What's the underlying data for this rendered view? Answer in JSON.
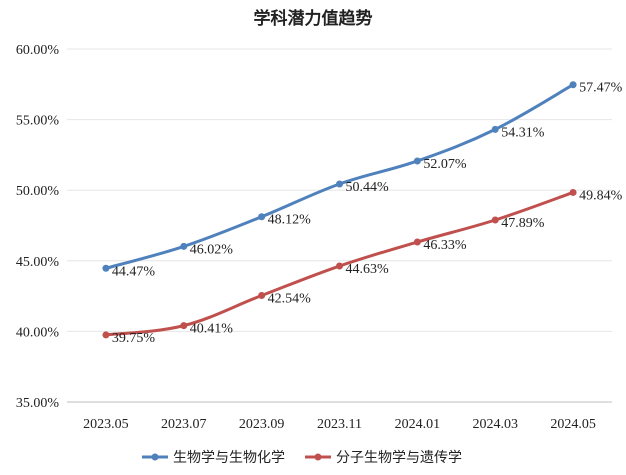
{
  "chart_data": {
    "type": "line",
    "title": "学科潜力值趋势",
    "categories": [
      "2023.05",
      "2023.07",
      "2023.09",
      "2023.11",
      "2024.01",
      "2024.03",
      "2024.05"
    ],
    "ylim": [
      35,
      60
    ],
    "yticks": [
      "35.00%",
      "40.00%",
      "45.00%",
      "50.00%",
      "55.00%",
      "60.00%"
    ],
    "grid": true,
    "legend": "bottom",
    "series": [
      {
        "name": "生物学与生物化学",
        "color": "#4f81bd",
        "values": [
          44.47,
          46.02,
          48.12,
          50.44,
          52.07,
          54.31,
          57.47
        ],
        "labels": [
          "44.47%",
          "46.02%",
          "48.12%",
          "50.44%",
          "52.07%",
          "54.31%",
          "57.47%"
        ]
      },
      {
        "name": "分子生物学与遗传学",
        "color": "#c0504d",
        "values": [
          39.75,
          40.41,
          42.54,
          44.63,
          46.33,
          47.89,
          49.84
        ],
        "labels": [
          "39.75%",
          "40.41%",
          "42.54%",
          "44.63%",
          "46.33%",
          "47.89%",
          "49.84%"
        ]
      }
    ]
  }
}
